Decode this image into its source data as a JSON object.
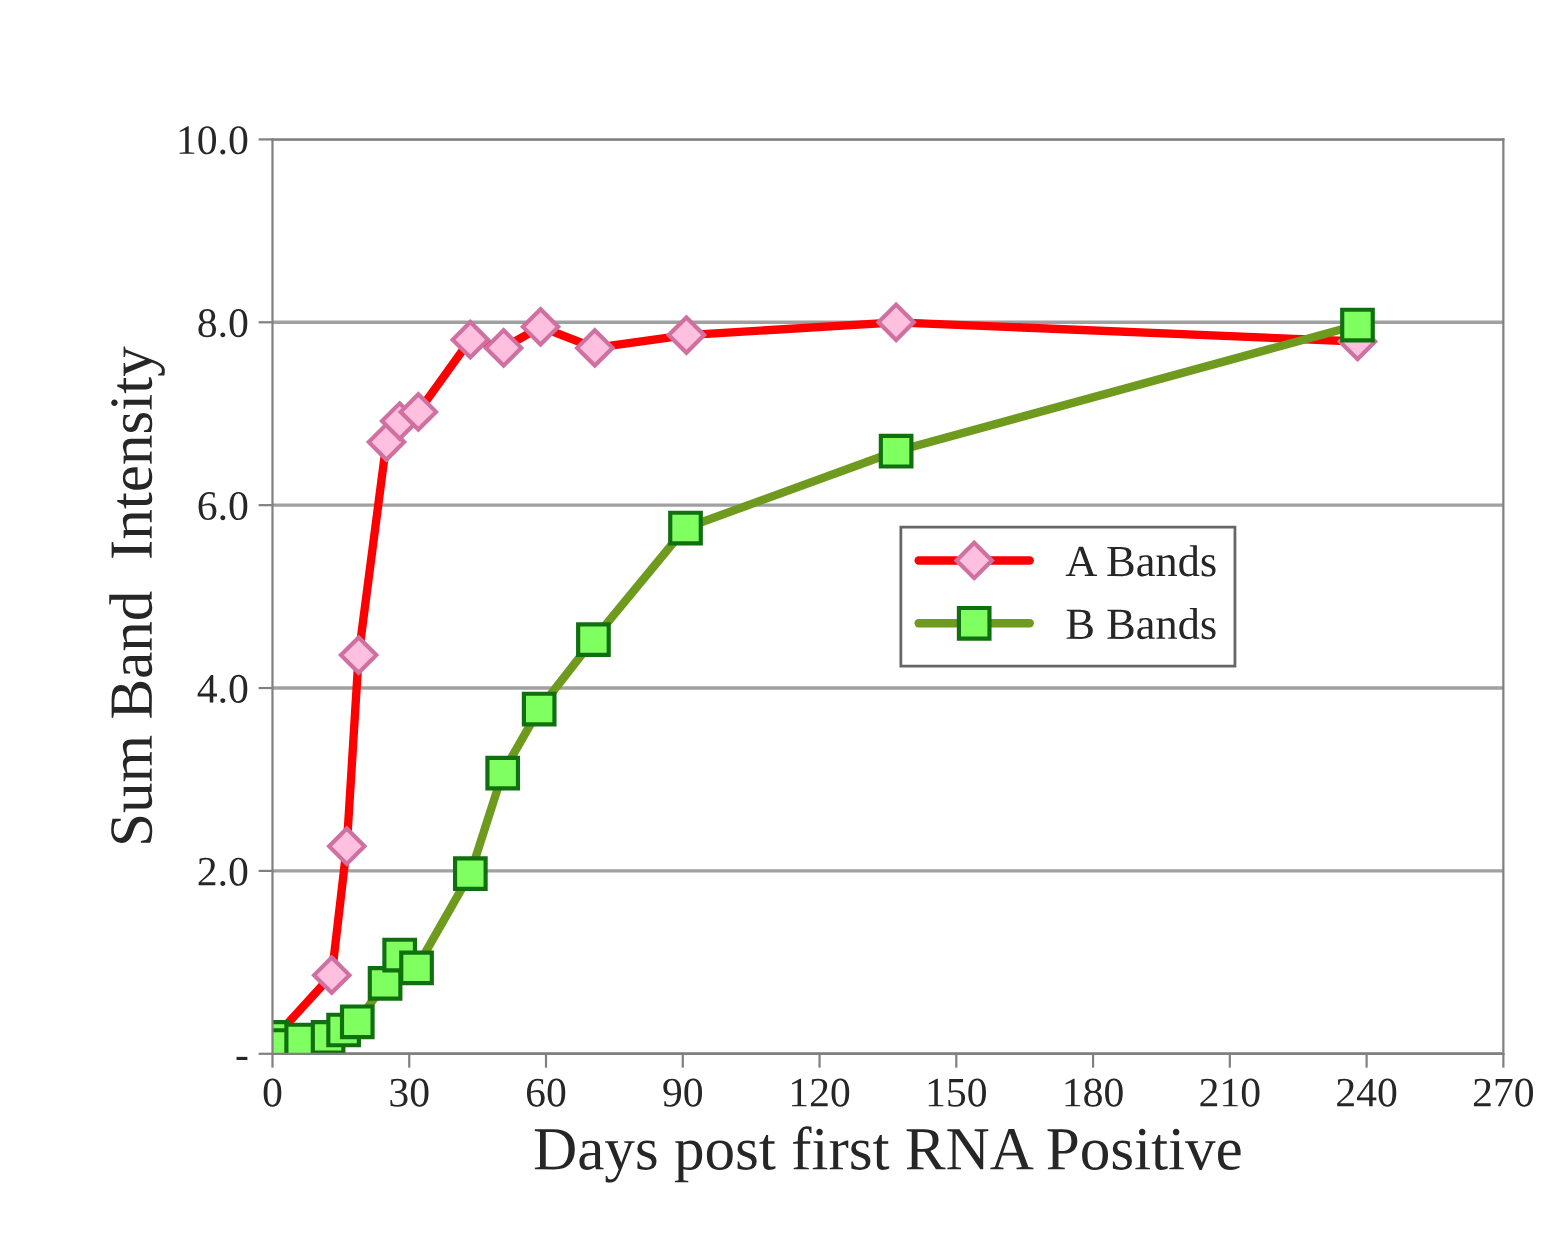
{
  "chart_data": {
    "type": "line",
    "xlabel": "Days post first RNA Positive",
    "ylabel": "Sum Band  Intensity",
    "xlim": [
      0,
      270
    ],
    "xticks": [
      0,
      30,
      60,
      90,
      120,
      150,
      180,
      210,
      240,
      270
    ],
    "ylim": [
      0,
      10
    ],
    "yticks": [
      {
        "value": 0,
        "label": "-"
      },
      {
        "value": 2,
        "label": "2.0"
      },
      {
        "value": 4,
        "label": "4.0"
      },
      {
        "value": 6,
        "label": "6.0"
      },
      {
        "value": 8,
        "label": "8.0"
      },
      {
        "value": 10,
        "label": "10.0"
      }
    ],
    "grid": "y",
    "legend": "center right",
    "line_style": "solid",
    "series": [
      {
        "name": "A Bands",
        "color": "#ff0000",
        "marker": "diamond",
        "x": [
          0,
          13,
          16.3,
          18.9,
          25,
          27.9,
          32,
          43.4,
          50.7,
          58.8,
          70.7,
          90.8,
          136.8,
          238
        ],
        "values": [
          0.15,
          0.86,
          2.27,
          4.36,
          6.69,
          6.92,
          7.02,
          7.81,
          7.72,
          7.95,
          7.72,
          7.86,
          8.0,
          7.79
        ]
      },
      {
        "name": "B Bands",
        "color": "#6e9a1e",
        "marker": "square",
        "x": [
          0,
          2.9,
          6.4,
          12.2,
          15.6,
          18.6,
          24.7,
          27.9,
          31.6,
          43.4,
          50.5,
          58.5,
          70.4,
          90.6,
          136.8,
          238
        ],
        "values": [
          0.18,
          0.09,
          0.15,
          0.18,
          0.26,
          0.35,
          0.77,
          1.08,
          0.94,
          1.97,
          3.07,
          3.77,
          4.53,
          5.75,
          6.59,
          7.97
        ]
      }
    ]
  }
}
